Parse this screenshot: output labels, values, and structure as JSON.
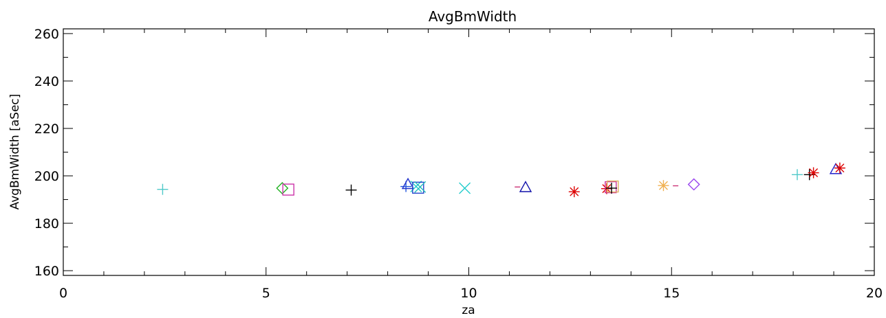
{
  "chart_data": {
    "type": "scatter",
    "title": "AvgBmWidth",
    "xlabel": "za",
    "ylabel": "AvgBmWidth [aSec]",
    "xlim": [
      0,
      20
    ],
    "ylim": [
      158,
      262
    ],
    "x_ticks": [
      0,
      5,
      10,
      15,
      20
    ],
    "y_ticks": [
      160,
      180,
      200,
      220,
      240,
      260
    ],
    "grid": false,
    "legend": "none",
    "points": [
      {
        "x": 2.45,
        "y": 194.3,
        "marker": "plus",
        "color": "#4fc9c9"
      },
      {
        "x": 5.4,
        "y": 194.8,
        "marker": "diamond",
        "color": "#22b322"
      },
      {
        "x": 5.55,
        "y": 194.2,
        "marker": "square",
        "color": "#cc33aa"
      },
      {
        "x": 7.1,
        "y": 194.0,
        "marker": "plus",
        "color": "#000000"
      },
      {
        "x": 8.45,
        "y": 195.5,
        "marker": "plus",
        "color": "#2255dd"
      },
      {
        "x": 8.5,
        "y": 196.5,
        "marker": "triangle",
        "color": "#2233cc"
      },
      {
        "x": 8.7,
        "y": 195.5,
        "marker": "x",
        "color": "#22cccc"
      },
      {
        "x": 8.75,
        "y": 195.0,
        "marker": "square",
        "color": "#2244cc"
      },
      {
        "x": 8.8,
        "y": 195.3,
        "marker": "x",
        "color": "#22bbbb"
      },
      {
        "x": 9.9,
        "y": 194.8,
        "marker": "x",
        "color": "#22cccc"
      },
      {
        "x": 11.2,
        "y": 195.3,
        "marker": "dash",
        "color": "#cc3377"
      },
      {
        "x": 11.4,
        "y": 195.2,
        "marker": "triangle",
        "color": "#1111aa"
      },
      {
        "x": 12.6,
        "y": 193.3,
        "marker": "asterisk",
        "color": "#dd0000"
      },
      {
        "x": 13.4,
        "y": 194.6,
        "marker": "asterisk",
        "color": "#dd0000"
      },
      {
        "x": 13.5,
        "y": 195.2,
        "marker": "square",
        "color": "#cc3399"
      },
      {
        "x": 13.55,
        "y": 195.5,
        "marker": "square",
        "color": "#e0b060"
      },
      {
        "x": 13.52,
        "y": 194.8,
        "marker": "plus",
        "color": "#000000"
      },
      {
        "x": 14.8,
        "y": 195.9,
        "marker": "asterisk",
        "color": "#f0b050"
      },
      {
        "x": 15.1,
        "y": 195.8,
        "marker": "dash",
        "color": "#cc3377"
      },
      {
        "x": 15.55,
        "y": 196.4,
        "marker": "diamond",
        "color": "#9944ee"
      },
      {
        "x": 18.1,
        "y": 200.5,
        "marker": "plus",
        "color": "#4fc9c9"
      },
      {
        "x": 18.4,
        "y": 200.5,
        "marker": "plus",
        "color": "#000000"
      },
      {
        "x": 18.5,
        "y": 201.3,
        "marker": "asterisk",
        "color": "#dd0000"
      },
      {
        "x": 19.05,
        "y": 202.8,
        "marker": "triangle",
        "color": "#2222cc"
      },
      {
        "x": 19.15,
        "y": 203.3,
        "marker": "asterisk",
        "color": "#dd0000"
      }
    ]
  }
}
